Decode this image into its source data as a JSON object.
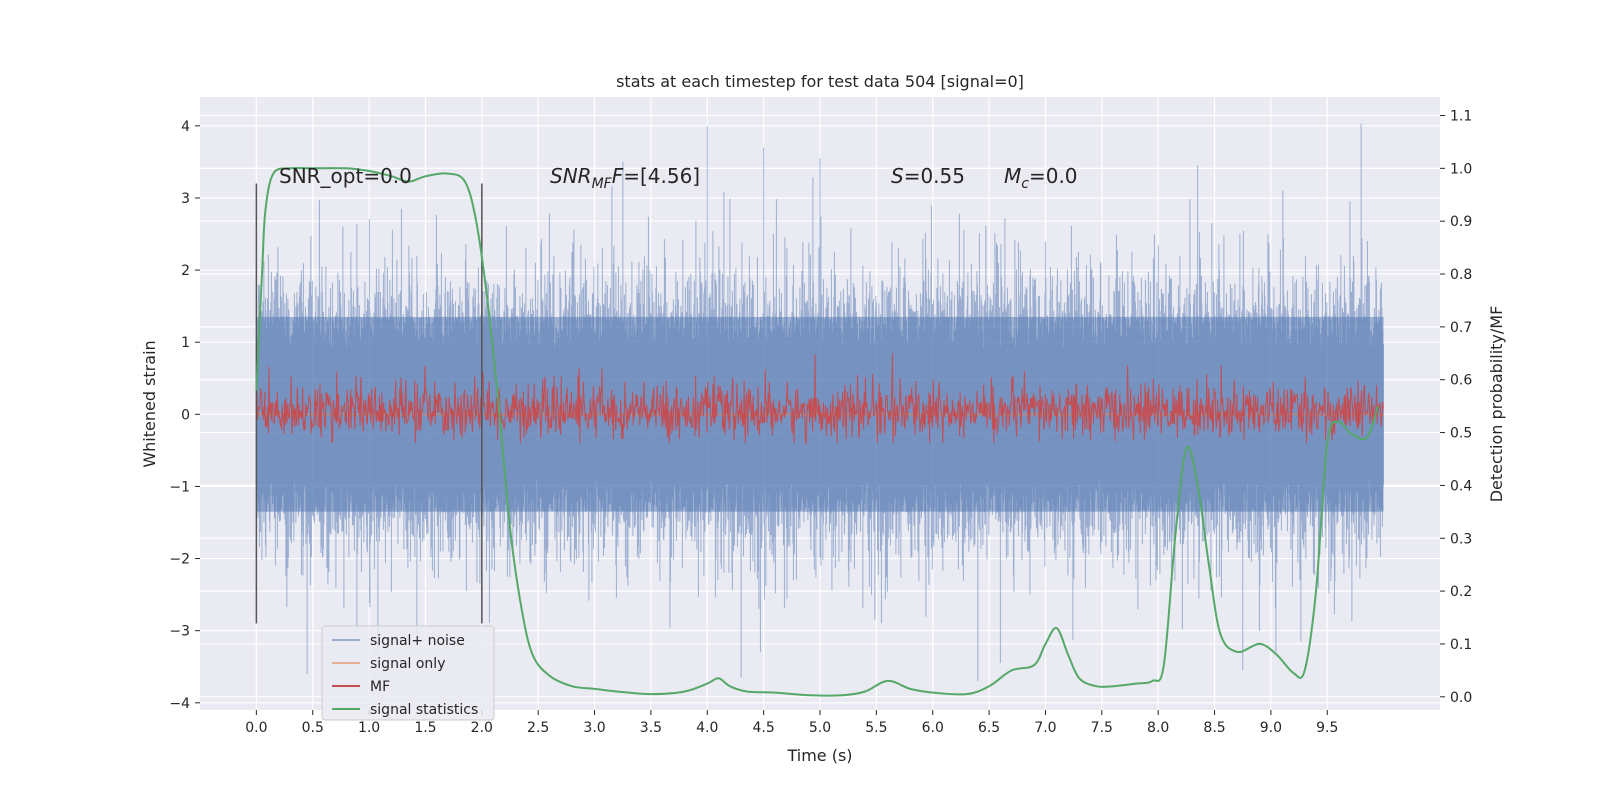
{
  "chart_data": {
    "type": "line",
    "title": "stats at each timestep for test data 504 [signal=0]",
    "xlabel": "Time (s)",
    "ylabel": "Whitened strain",
    "ylabel_right": "Detection probability/MF",
    "xlim": [
      -0.5,
      10.5
    ],
    "ylim": [
      -4.1,
      4.4
    ],
    "ylim_right": [
      -0.025,
      1.135
    ],
    "x_ticks": [
      0.0,
      0.5,
      1.0,
      1.5,
      2.0,
      2.5,
      3.0,
      3.5,
      4.0,
      4.5,
      5.0,
      5.5,
      6.0,
      6.5,
      7.0,
      7.5,
      8.0,
      8.5,
      9.0,
      9.5
    ],
    "x_tick_labels": [
      "0.0",
      "0.5",
      "1.0",
      "1.5",
      "2.0",
      "2.5",
      "3.0",
      "3.5",
      "4.0",
      "4.5",
      "5.0",
      "5.5",
      "6.0",
      "6.5",
      "7.0",
      "7.5",
      "8.0",
      "8.5",
      "9.0",
      "9.5"
    ],
    "y_ticks": [
      4,
      3,
      2,
      1,
      0,
      -1,
      -2,
      -3,
      -4
    ],
    "y_tick_labels": [
      "4",
      "3",
      "2",
      "1",
      "0",
      "−1",
      "−2",
      "−3",
      "−4"
    ],
    "y_right_ticks": [
      1.1,
      1.0,
      0.9,
      0.8,
      0.7,
      0.6,
      0.5,
      0.4,
      0.3,
      0.2,
      0.1,
      0.0
    ],
    "y_right_tick_labels": [
      "1.1",
      "1.0",
      "0.9",
      "0.8",
      "0.7",
      "0.6",
      "0.5",
      "0.4",
      "0.3",
      "0.2",
      "0.1",
      "0.0"
    ],
    "grid": true,
    "legend_position": "lower-left",
    "annotations": {
      "snr_opt": "SNR_opt=0.0",
      "snr_mf_base": "SNR",
      "snr_mf_sub": "MF",
      "snr_mf_value": "=[4.56]",
      "s_sym": "S",
      "s_value": "=0.55",
      "mc_sym": "M",
      "mc_sub": "c",
      "mc_value": "=0.0"
    },
    "vertical_markers": [
      {
        "x": 0.0,
        "y_range": [
          -2.9,
          3.2
        ]
      },
      {
        "x": 2.0,
        "y_range": [
          -2.9,
          3.2
        ]
      }
    ],
    "series": [
      {
        "name": "signal+ noise",
        "color": "#4c72b0",
        "axis": "left",
        "style": "noise",
        "x_range": [
          0.0,
          10.0
        ],
        "typical_amplitude": 1.35,
        "peak_maxima": [
          4.0,
          4.03,
          3.7,
          3.55,
          3.45
        ],
        "peak_minima": [
          -3.6,
          -3.7,
          -3.65,
          -3.55,
          -3.45
        ]
      },
      {
        "name": "signal only",
        "color": "#dd8452",
        "axis": "left",
        "style": "flat",
        "x": [
          0.0,
          10.0
        ],
        "y": [
          0.0,
          0.0
        ]
      },
      {
        "name": "MF",
        "color": "#c44e52",
        "axis": "right",
        "style": "noise",
        "x_range": [
          0.0,
          10.0
        ],
        "mean": 0.54,
        "range": [
          0.48,
          0.63
        ]
      },
      {
        "name": "signal statistics",
        "color": "#55a868",
        "axis": "right",
        "style": "line",
        "x": [
          0.0,
          0.05,
          0.08,
          0.15,
          0.3,
          0.5,
          0.8,
          1.0,
          1.2,
          1.35,
          1.5,
          1.7,
          1.85,
          1.95,
          2.05,
          2.15,
          2.25,
          2.35,
          2.45,
          2.6,
          2.8,
          3.0,
          3.2,
          3.5,
          3.8,
          4.0,
          4.1,
          4.2,
          4.35,
          4.6,
          4.9,
          5.2,
          5.4,
          5.6,
          5.8,
          6.0,
          6.3,
          6.5,
          6.7,
          6.9,
          7.0,
          7.1,
          7.2,
          7.3,
          7.45,
          7.6,
          7.8,
          7.95,
          8.05,
          8.15,
          8.25,
          8.35,
          8.45,
          8.55,
          8.7,
          8.9,
          9.05,
          9.2,
          9.3,
          9.4,
          9.5,
          9.6,
          9.7,
          9.85,
          9.95
        ],
        "y": [
          0.58,
          0.8,
          0.92,
          0.99,
          1.0,
          1.0,
          1.0,
          0.995,
          0.985,
          0.975,
          0.985,
          0.99,
          0.975,
          0.9,
          0.75,
          0.55,
          0.32,
          0.17,
          0.08,
          0.04,
          0.02,
          0.015,
          0.01,
          0.005,
          0.01,
          0.025,
          0.035,
          0.02,
          0.01,
          0.008,
          0.003,
          0.003,
          0.01,
          0.03,
          0.015,
          0.008,
          0.005,
          0.02,
          0.05,
          0.06,
          0.1,
          0.13,
          0.08,
          0.035,
          0.02,
          0.02,
          0.025,
          0.03,
          0.06,
          0.3,
          0.47,
          0.4,
          0.25,
          0.12,
          0.085,
          0.1,
          0.08,
          0.045,
          0.05,
          0.2,
          0.48,
          0.52,
          0.5,
          0.49,
          0.55
        ]
      }
    ]
  }
}
